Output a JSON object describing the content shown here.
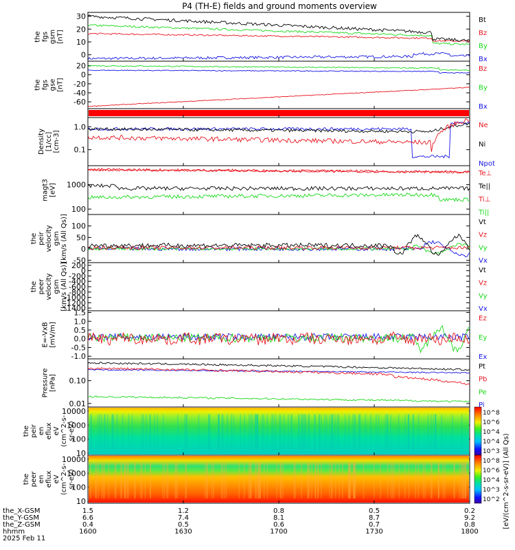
{
  "title": "P4 (TH-E) fields and ground moments overview",
  "colors": {
    "black": "#000000",
    "red": "#e8141e",
    "green": "#18d818",
    "blue": "#1414e6"
  },
  "panels": [
    {
      "id": "fgs-gsm",
      "ylabel": [
        "the",
        "fgs",
        "gsm",
        "[nT]"
      ],
      "type": "line",
      "ylim": [
        -5,
        33
      ],
      "ticks": [
        "30",
        "20",
        "10",
        "0"
      ],
      "tickvals": [
        30,
        20,
        10,
        0
      ],
      "legend": [
        {
          "name": "Bt",
          "color": "black"
        },
        {
          "name": "Bz",
          "color": "red"
        },
        {
          "name": "By",
          "color": "green"
        },
        {
          "name": "Bx",
          "color": "blue"
        }
      ]
    },
    {
      "id": "fgs-gse",
      "ylabel": [
        "the",
        "fgs",
        "gse",
        "[nT]"
      ],
      "type": "line",
      "ylim": [
        -75,
        30
      ],
      "ticks": [
        "20",
        "0",
        "-20",
        "-40",
        "-60"
      ],
      "tickvals": [
        20,
        0,
        -20,
        -40,
        -60
      ],
      "legend": [
        {
          "name": "Bz",
          "color": "red"
        },
        {
          "name": "By",
          "color": "green"
        },
        {
          "name": "Bx",
          "color": "blue"
        }
      ]
    },
    {
      "id": "quality-bar",
      "ylabel": [],
      "type": "bar",
      "ticks": [],
      "legend": []
    },
    {
      "id": "density",
      "ylabel": [
        "Density",
        "[1/cc]",
        "[cm-3]"
      ],
      "type": "log",
      "ylim": [
        0.02,
        2.5
      ],
      "ticks": [
        "1.0",
        "0.1"
      ],
      "tickvals": [
        1.0,
        0.1
      ],
      "legend": [
        {
          "name": "Ne",
          "color": "red"
        },
        {
          "name": "Ni",
          "color": "black"
        },
        {
          "name": "Npot",
          "color": "blue"
        }
      ]
    },
    {
      "id": "temperature",
      "ylabel": [
        "magt3",
        "[eV]"
      ],
      "type": "log",
      "ylim": [
        60,
        6000
      ],
      "ticks": [
        "1000",
        "100"
      ],
      "tickvals": [
        1000,
        100
      ],
      "legend": [
        {
          "name": "Te⊥",
          "color": "red"
        },
        {
          "name": "Te||",
          "color": "black"
        },
        {
          "name": "Ti⊥",
          "color": "red"
        },
        {
          "name": "Ti||",
          "color": "green"
        }
      ]
    },
    {
      "id": "velocity-peir",
      "ylabel": [
        "the",
        "peir",
        "velocity",
        "gsm",
        "[km/s (All Qs)]"
      ],
      "type": "line",
      "ylim": [
        -60,
        150
      ],
      "ticks": [
        "100",
        "50",
        "0",
        "-50"
      ],
      "tickvals": [
        100,
        50,
        0,
        -50
      ],
      "legend": [
        {
          "name": "Vt",
          "color": "black"
        },
        {
          "name": "Vz",
          "color": "red"
        },
        {
          "name": "Vy",
          "color": "green"
        },
        {
          "name": "Vx",
          "color": "blue"
        }
      ]
    },
    {
      "id": "velocity-peer",
      "ylabel": [
        "the",
        "peer",
        "velocity",
        "gsm",
        "[km/s (All Qs)]"
      ],
      "type": "line",
      "ylim": [
        -1500,
        300
      ],
      "ticks": [
        "200",
        "0",
        "-200",
        "-400",
        "-600",
        "-800",
        "-1000",
        "-1200",
        "-1400"
      ],
      "tickvals": [
        200,
        0,
        -200,
        -400,
        -600,
        -800,
        -1000,
        -1200,
        -1400
      ],
      "legend": [
        {
          "name": "Vt",
          "color": "black"
        },
        {
          "name": "Vz",
          "color": "red"
        },
        {
          "name": "Vy",
          "color": "green"
        },
        {
          "name": "Vx",
          "color": "blue"
        }
      ]
    },
    {
      "id": "efield",
      "ylabel": [
        "E=-VxB",
        "[mV/m]"
      ],
      "type": "line",
      "ylim": [
        -1.15,
        1.6
      ],
      "ticks": [
        "1.5",
        "1.0",
        "0.5",
        "0.0",
        "-0.5",
        "-1.0"
      ],
      "tickvals": [
        1.5,
        1.0,
        0.5,
        0.0,
        -0.5,
        -1.0
      ],
      "legend": [
        {
          "name": "Ez",
          "color": "red"
        },
        {
          "name": "Ey",
          "color": "green"
        },
        {
          "name": "Ex",
          "color": "blue"
        }
      ]
    },
    {
      "id": "pressure",
      "ylabel": [
        "Pressure",
        "[nPa]"
      ],
      "type": "log",
      "ylim": [
        0.007,
        0.9
      ],
      "ticks": [
        "0.10",
        "0.01"
      ],
      "tickvals": [
        0.1,
        0.01
      ],
      "legend": [
        {
          "name": "Pt",
          "color": "black"
        },
        {
          "name": "Pb",
          "color": "red"
        },
        {
          "name": "Pe",
          "color": "green"
        },
        {
          "name": "Pi",
          "color": "blue"
        }
      ]
    },
    {
      "id": "peir-spec",
      "ylabel": [
        "the",
        "peir",
        "en",
        "eflux",
        "eV",
        "(cm^2-s-",
        "sr-eV)"
      ],
      "type": "spec",
      "ticks": [
        "10000",
        "1000",
        "100",
        "10"
      ],
      "tickvals": [
        10000,
        1000,
        100,
        10
      ],
      "legend": []
    },
    {
      "id": "peer-spec",
      "ylabel": [
        "the",
        "peer",
        "en",
        "eflux",
        "eV",
        "(cm^2-s-",
        "sr-eV)"
      ],
      "type": "spec",
      "ticks": [
        "10000",
        "1000",
        "100",
        "10"
      ],
      "tickvals": [
        10000,
        1000,
        100,
        10
      ],
      "legend": []
    }
  ],
  "colorbar": {
    "label": "[eV/(cm^2-s-sr-eV)] (All Qs)",
    "ticks_upper": [
      "10^8",
      "10^6",
      "10^4",
      "10^4",
      "10^3"
    ],
    "ticks_lower": [
      "10^8",
      "10^6",
      "10^4",
      "10^3",
      "10^2"
    ]
  },
  "xaxis": {
    "rows": [
      {
        "label": "the_X-GSM",
        "values": [
          "1.5",
          "1.2",
          "0.8",
          "0.5",
          "0.2"
        ]
      },
      {
        "label": "the_Y-GSM",
        "values": [
          "6.6",
          "7.4",
          "8.1",
          "8.7",
          "9.2"
        ]
      },
      {
        "label": "the_Z-GSM",
        "values": [
          "0.4",
          "0.5",
          "0.6",
          "0.7",
          "0.8"
        ]
      },
      {
        "label": "hhmm",
        "values": [
          "1600",
          "1630",
          "1700",
          "1730",
          "1800"
        ]
      }
    ],
    "date": "2025 Feb 11"
  }
}
